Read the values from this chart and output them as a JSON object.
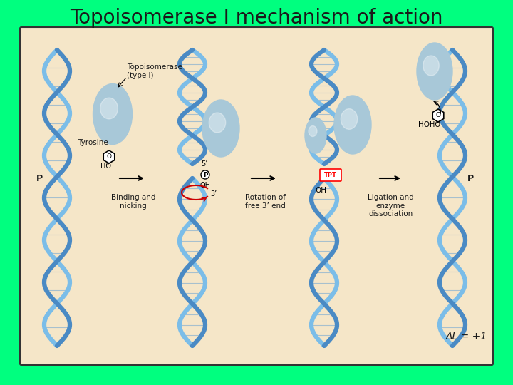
{
  "title": "Topoisomerase I mechanism of action",
  "title_color": "#1a1a1a",
  "title_fontsize": 20,
  "bg_color": "#00FF7F",
  "panel_color": "#F5E6C8",
  "panel_border_color": "#333333",
  "enzyme_color": "#A8C8D8",
  "enzyme_color2": "#B8D4E0",
  "dna_color": "#5B9BD5",
  "dna_highlight": "#7BBDE8",
  "arrow_color": "#1a1a1a",
  "text_color": "#1a1a1a",
  "red_arrow_color": "#CC0000",
  "tpt_color": "#CC0000",
  "annotation_color": "#1a1a1a",
  "delta_l_text": "ΔL = +1",
  "step1_label": "Binding and\nnicking",
  "step2_label": "Rotation of\nfree 3’ end",
  "step3_label": "Ligation and\nenzyme\ndissociation",
  "enzyme_label": "Topoisomerase\n(type I)",
  "tyrosine_label": "Tyrosine",
  "p_label": "P",
  "ho_label": "HO",
  "five_prime": "5’",
  "three_prime": "3’",
  "oh_label": "OH",
  "p_right": "P"
}
